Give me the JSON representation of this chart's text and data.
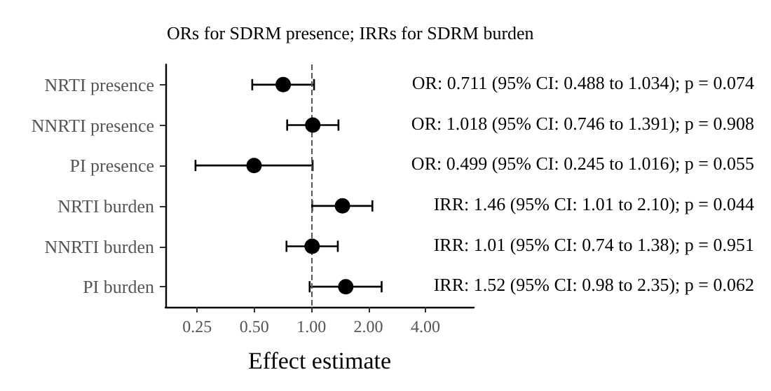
{
  "chart_data": {
    "type": "scatter",
    "orientation": "horizontal",
    "title": "ORs for SDRM presence; IRRs for SDRM burden",
    "xlabel": "Effect estimate",
    "categories": [
      "NRTI presence",
      "NNRTI presence",
      "PI presence",
      "NRTI burden",
      "NNRTI burden",
      "PI burden"
    ],
    "values": [
      0.711,
      1.018,
      0.499,
      1.46,
      1.01,
      1.52
    ],
    "errors": [
      [
        0.488,
        1.034
      ],
      [
        0.746,
        1.391
      ],
      [
        0.245,
        1.016
      ],
      [
        1.01,
        2.1
      ],
      [
        0.74,
        1.38
      ],
      [
        0.98,
        2.35
      ]
    ],
    "value_labels": [
      "OR: 0.711 (95% CI: 0.488 to 1.034); p = 0.074",
      "OR: 1.018 (95% CI: 0.746 to 1.391); p = 0.908",
      "OR: 0.499 (95% CI: 0.245 to 1.016); p = 0.055",
      "IRR: 1.46 (95% CI: 1.01 to 2.10); p = 0.044",
      "IRR: 1.01 (95% CI: 0.74 to 1.38); p = 0.951",
      "IRR: 1.52 (95% CI: 0.98 to 2.35); p = 0.062"
    ],
    "color": "#000000",
    "marker": "circle",
    "log": "x",
    "xlim": [
      0.17,
      7.2
    ],
    "xticks": [
      {
        "value": 0.25,
        "label": "0.25"
      },
      {
        "value": 0.5,
        "label": "0.50"
      },
      {
        "value": 1,
        "label": "1.00"
      },
      {
        "value": 2,
        "label": "2.00"
      },
      {
        "value": 4,
        "label": "4.00"
      }
    ],
    "ref_lines": [
      {
        "axis": "x",
        "value": 1,
        "color": "#555555",
        "line_style": "dashed"
      }
    ]
  }
}
